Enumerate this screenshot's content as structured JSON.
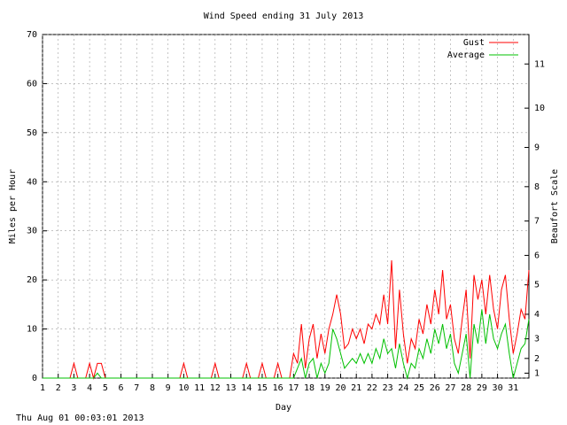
{
  "chart_data": {
    "type": "line",
    "title": "Wind Speed ending 31 July 2013",
    "xlabel": "Day",
    "ylabel": "Miles per Hour",
    "y2label": "Beaufort Scale",
    "footer": "Thu Aug 01 00:03:01 2013",
    "xlim": [
      1,
      32
    ],
    "xticks": [
      1,
      2,
      3,
      4,
      5,
      6,
      7,
      8,
      9,
      10,
      11,
      12,
      13,
      14,
      15,
      16,
      17,
      18,
      19,
      20,
      21,
      22,
      23,
      24,
      25,
      26,
      27,
      28,
      29,
      30,
      31
    ],
    "ylim": [
      0,
      70
    ],
    "yticks": [
      0,
      10,
      20,
      30,
      40,
      50,
      60,
      70
    ],
    "y2lim": [
      0,
      70
    ],
    "y2ticks": [
      1,
      {
        "value": 4,
        "label": "2"
      },
      {
        "value": 8,
        "label": "3"
      },
      {
        "value": 13,
        "label": "4"
      },
      {
        "value": 19,
        "label": "5"
      },
      {
        "value": 25,
        "label": "6"
      },
      {
        "value": 32,
        "label": "7"
      },
      {
        "value": 39,
        "label": "8"
      },
      {
        "value": 47,
        "label": "9"
      },
      {
        "value": 55,
        "label": "10"
      },
      {
        "value": 64,
        "label": "11"
      }
    ],
    "grid": true,
    "legend": "top-right",
    "x": [
      1,
      1.25,
      1.5,
      1.75,
      2,
      2.25,
      2.5,
      2.75,
      3,
      3.25,
      3.5,
      3.75,
      4,
      4.25,
      4.5,
      4.75,
      5,
      5.25,
      5.5,
      5.75,
      6,
      6.25,
      6.5,
      6.75,
      7,
      7.25,
      7.5,
      7.75,
      8,
      8.25,
      8.5,
      8.75,
      9,
      9.25,
      9.5,
      9.75,
      10,
      10.25,
      10.5,
      10.75,
      11,
      11.25,
      11.5,
      11.75,
      12,
      12.25,
      12.5,
      12.75,
      13,
      13.25,
      13.5,
      13.75,
      14,
      14.25,
      14.5,
      14.75,
      15,
      15.25,
      15.5,
      15.75,
      16,
      16.25,
      16.5,
      16.75,
      17,
      17.25,
      17.5,
      17.75,
      18,
      18.25,
      18.5,
      18.75,
      19,
      19.25,
      19.5,
      19.75,
      20,
      20.25,
      20.5,
      20.75,
      21,
      21.25,
      21.5,
      21.75,
      22,
      22.25,
      22.5,
      22.75,
      23,
      23.25,
      23.5,
      23.75,
      24,
      24.25,
      24.5,
      24.75,
      25,
      25.25,
      25.5,
      25.75,
      26,
      26.25,
      26.5,
      26.75,
      27,
      27.25,
      27.5,
      27.75,
      28,
      28.25,
      28.5,
      28.75,
      29,
      29.25,
      29.5,
      29.75,
      30,
      30.25,
      30.5,
      30.75,
      31,
      31.25,
      31.5,
      31.75,
      32
    ],
    "series": [
      {
        "name": "Gust",
        "color": "#ff0000",
        "values": [
          0,
          0,
          0,
          0,
          0,
          0,
          0,
          0,
          3,
          0,
          0,
          0,
          3,
          0,
          3,
          3,
          0,
          0,
          0,
          0,
          0,
          0,
          0,
          0,
          0,
          0,
          0,
          0,
          0,
          0,
          0,
          0,
          0,
          0,
          0,
          0,
          3,
          0,
          0,
          0,
          0,
          0,
          0,
          0,
          3,
          0,
          0,
          0,
          0,
          0,
          0,
          0,
          3,
          0,
          0,
          0,
          3,
          0,
          0,
          0,
          3,
          0,
          0,
          0,
          5,
          3,
          11,
          2,
          8,
          11,
          4,
          9,
          5,
          10,
          13,
          17,
          13,
          6,
          7,
          10,
          8,
          10,
          7,
          11,
          10,
          13,
          11,
          17,
          11,
          24,
          6,
          18,
          9,
          3,
          8,
          6,
          12,
          9,
          15,
          11,
          18,
          13,
          22,
          12,
          15,
          8,
          5,
          12,
          18,
          4,
          21,
          16,
          20,
          13,
          21,
          14,
          10,
          18,
          21,
          12,
          5,
          9,
          14,
          12,
          22
        ]
      },
      {
        "name": "Average",
        "color": "#00c000",
        "values": [
          0,
          0,
          0,
          0,
          0,
          0,
          0,
          0,
          0,
          0,
          0,
          0,
          0,
          0,
          1,
          0,
          0,
          0,
          0,
          0,
          0,
          0,
          0,
          0,
          0,
          0,
          0,
          0,
          0,
          0,
          0,
          0,
          0,
          0,
          0,
          0,
          0,
          0,
          0,
          0,
          0,
          0,
          0,
          0,
          0,
          0,
          0,
          0,
          0,
          0,
          0,
          0,
          0,
          0,
          0,
          0,
          0,
          0,
          0,
          0,
          0,
          0,
          0,
          0,
          0,
          2,
          4,
          0,
          3,
          4,
          0,
          3,
          1,
          3,
          10,
          8,
          5,
          2,
          3,
          4,
          3,
          5,
          3,
          5,
          3,
          6,
          4,
          8,
          5,
          6,
          2,
          7,
          3,
          0,
          3,
          2,
          6,
          4,
          8,
          5,
          10,
          7,
          11,
          6,
          9,
          3,
          1,
          5,
          9,
          0,
          11,
          7,
          14,
          7,
          13,
          8,
          6,
          9,
          11,
          5,
          0,
          3,
          6,
          7,
          12
        ]
      }
    ]
  }
}
